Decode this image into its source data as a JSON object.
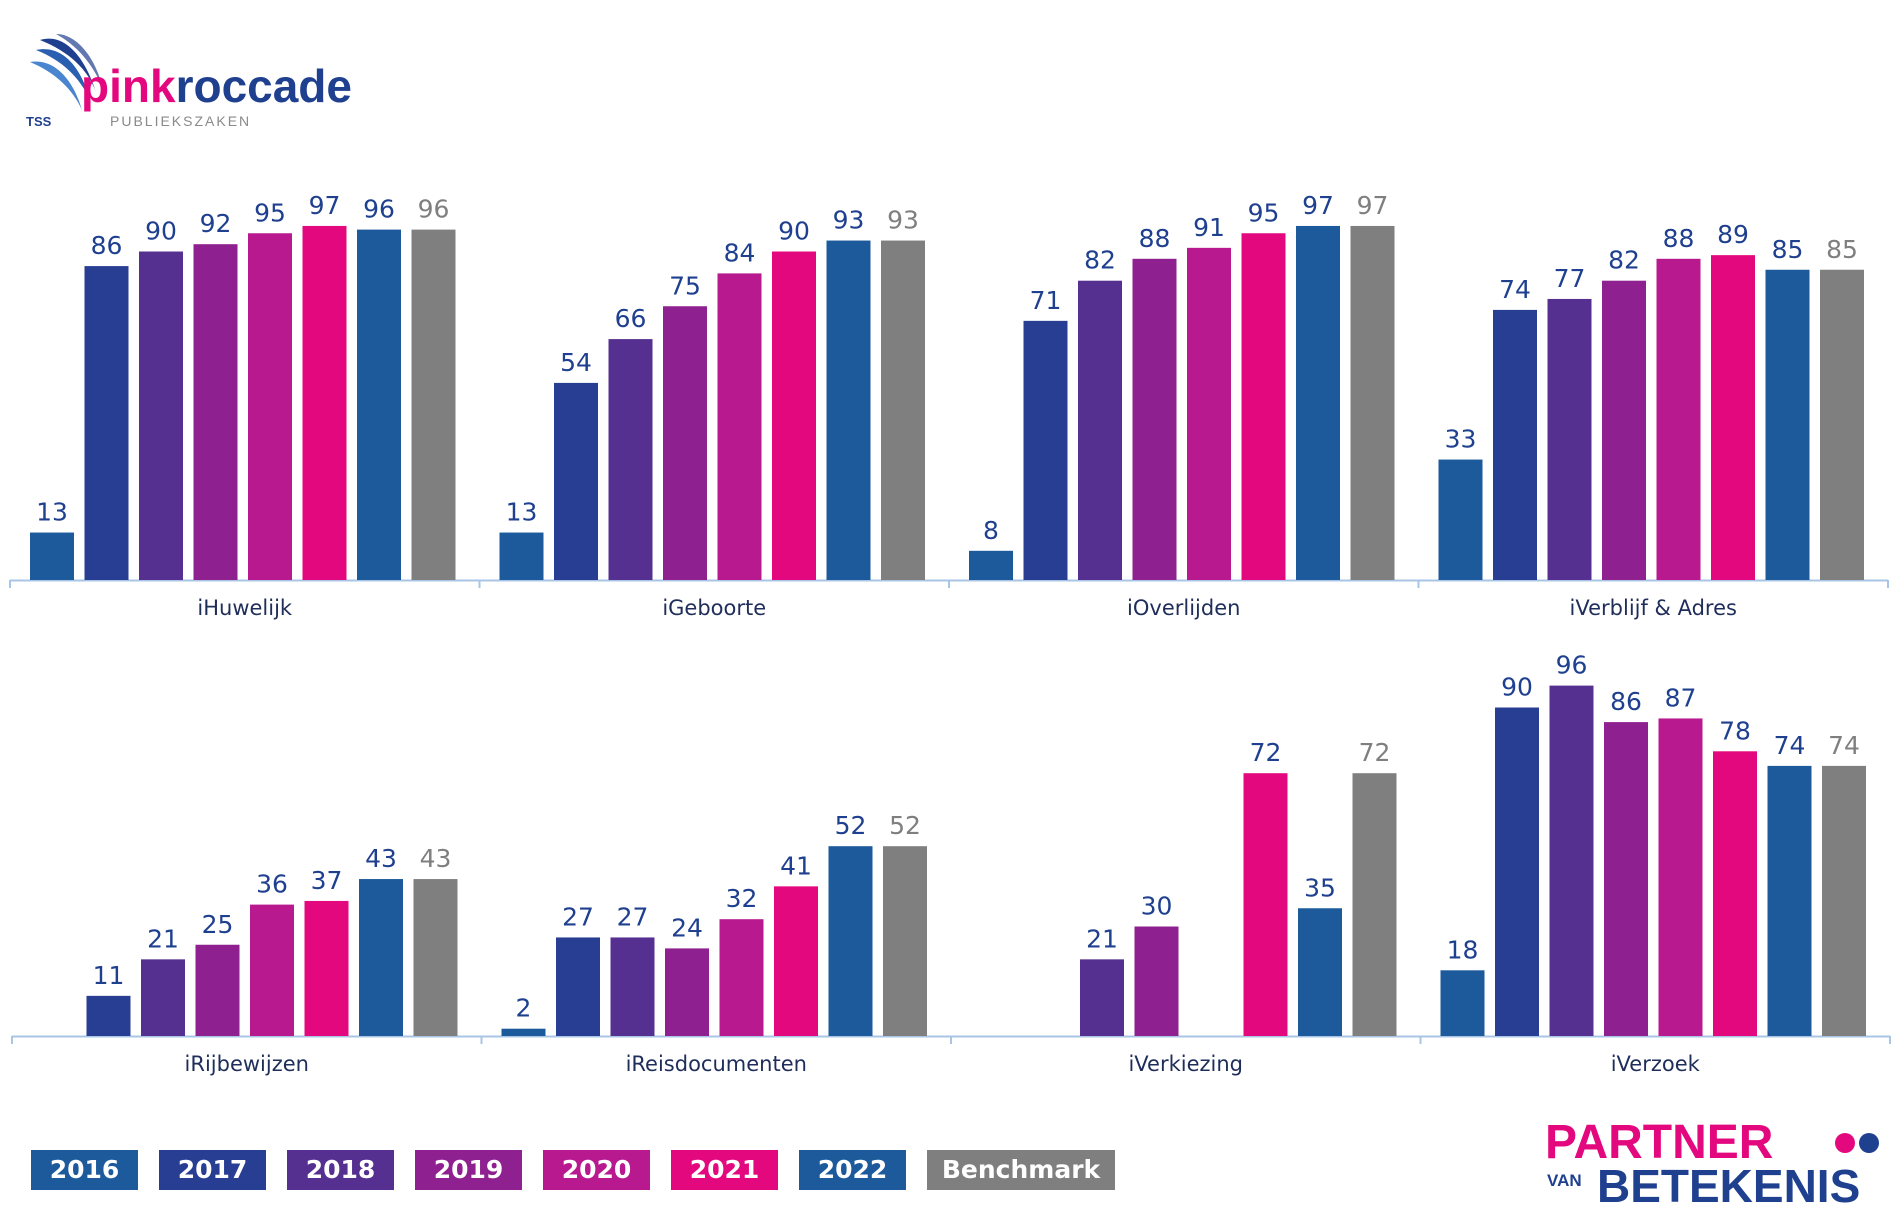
{
  "brand": {
    "name_pink": "pink",
    "name_blue": "roccade",
    "sub_label": "PUBLIEKSZAKEN",
    "tss_label": "TSS",
    "partner_line1": "PARTNER",
    "partner_line2_small": "VAN",
    "partner_line2_big": "BETEKENIS",
    "pink_color": "#e4087e",
    "blue_color": "#1f3f8f"
  },
  "chart_data": {
    "type": "bar",
    "title": "",
    "series": [
      {
        "name": "2016",
        "color": "#1c5a9c"
      },
      {
        "name": "2017",
        "color": "#283e93"
      },
      {
        "name": "2018",
        "color": "#553090"
      },
      {
        "name": "2019",
        "color": "#8e208f"
      },
      {
        "name": "2020",
        "color": "#b8198e"
      },
      {
        "name": "2021",
        "color": "#e4087e"
      },
      {
        "name": "2022",
        "color": "#1c5a9c"
      },
      {
        "name": "Benchmark",
        "color": "#7f7f7f"
      }
    ],
    "value_label_color": "#1f3f8f",
    "benchmark_label_color": "#7f7f7f",
    "ylim": [
      0,
      100
    ],
    "panels": [
      {
        "row": 0,
        "category": "iHuwelijk",
        "values": [
          13,
          86,
          90,
          92,
          95,
          97,
          96,
          96
        ]
      },
      {
        "row": 0,
        "category": "iGeboorte",
        "values": [
          13,
          54,
          66,
          75,
          84,
          90,
          93,
          93
        ]
      },
      {
        "row": 0,
        "category": "iOverlijden",
        "values": [
          8,
          71,
          82,
          88,
          91,
          95,
          97,
          97
        ]
      },
      {
        "row": 0,
        "category": "iVerblijf & Adres",
        "values": [
          33,
          74,
          77,
          82,
          88,
          89,
          85,
          85
        ]
      },
      {
        "row": 1,
        "category": "iRijbewijzen",
        "values": [
          null,
          11,
          21,
          25,
          36,
          37,
          43,
          43
        ]
      },
      {
        "row": 1,
        "category": "iReisdocumenten",
        "values": [
          2,
          27,
          27,
          24,
          32,
          41,
          52,
          52
        ]
      },
      {
        "row": 1,
        "category": "iVerkiezing",
        "values": [
          null,
          null,
          21,
          30,
          null,
          72,
          35,
          72
        ]
      },
      {
        "row": 1,
        "category": "iVerzoek",
        "values": [
          18,
          90,
          96,
          86,
          87,
          78,
          74,
          74
        ]
      }
    ]
  }
}
